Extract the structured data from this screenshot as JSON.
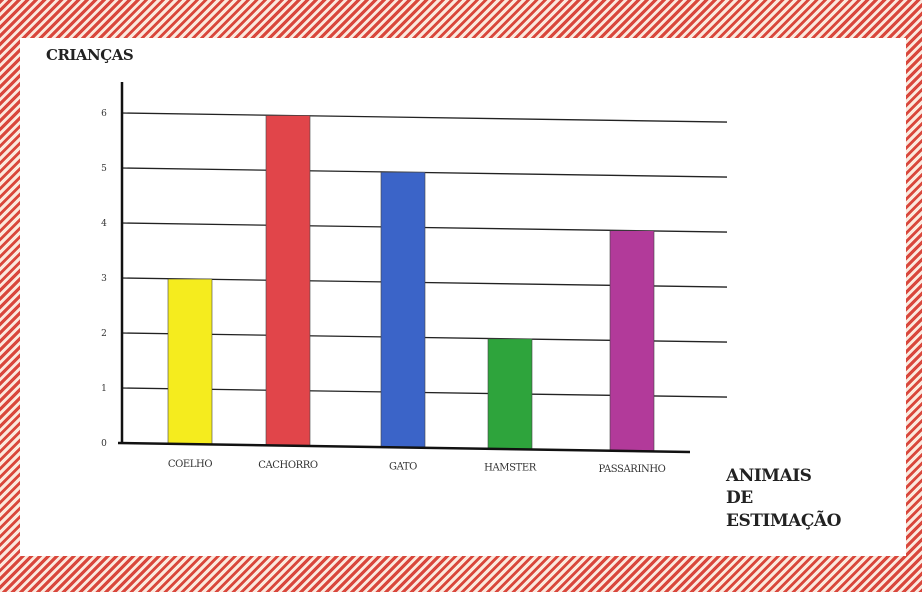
{
  "chart_data": {
    "type": "bar",
    "ylabel": "CRIANÇAS",
    "xlabel_lines": [
      "ANIMAIS",
      "DE",
      "ESTIMAÇÃO"
    ],
    "categories": [
      "COELHO",
      "CACHORRO",
      "GATO",
      "HAMSTER",
      "PASSARINHO"
    ],
    "values": [
      3,
      6,
      5,
      2,
      4
    ],
    "colors": [
      "#f5ec1e",
      "#e1454a",
      "#3b64c8",
      "#2ea43c",
      "#b23a9a"
    ],
    "yticks": [
      "0",
      "1",
      "2",
      "3",
      "4",
      "5",
      "6"
    ],
    "ylim": [
      0,
      6
    ],
    "grid": true
  }
}
